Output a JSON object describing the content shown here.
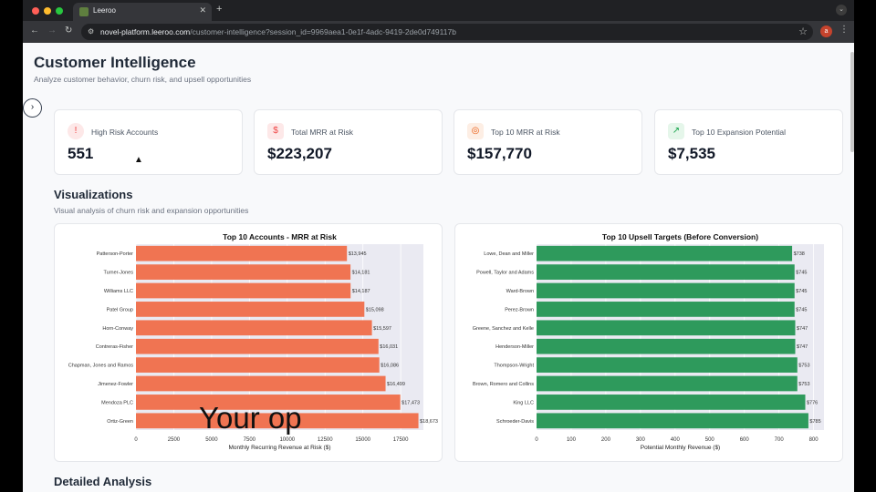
{
  "browser": {
    "tab_title": "Leeroo",
    "url_host": "novel-platform.leeroo.com",
    "url_path": "/customer-intelligence?session_id=9969aea1-0e1f-4adc-9419-2de0d749117b",
    "profile_initial": "a"
  },
  "header": {
    "title": "Customer Intelligence",
    "subtitle": "Analyze customer behavior, churn risk, and upsell opportunities"
  },
  "kpis": [
    {
      "label": "High Risk Accounts",
      "value": "551",
      "icon": "alert-circle-icon",
      "color": "#ef4444",
      "bg": "#fde8e8"
    },
    {
      "label": "Total MRR at Risk",
      "value": "$223,207",
      "icon": "dollar-icon",
      "color": "#ef4444",
      "bg": "#fde8e8"
    },
    {
      "label": "Top 10 MRR at Risk",
      "value": "$157,770",
      "icon": "target-icon",
      "color": "#ea580c",
      "bg": "#fdeee4"
    },
    {
      "label": "Top 10 Expansion Potential",
      "value": "$7,535",
      "icon": "trending-up-icon",
      "color": "#16a34a",
      "bg": "#e5f6ea"
    }
  ],
  "visualizations": {
    "title": "Visualizations",
    "subtitle": "Visual analysis of churn risk and expansion opportunities"
  },
  "detailed": {
    "title": "Detailed Analysis"
  },
  "overlay_caption": "Your op",
  "chart_data": [
    {
      "type": "bar",
      "orientation": "horizontal",
      "title": "Top 10 Accounts - MRR at Risk",
      "xlabel": "Monthly Recurring Revenue at Risk ($)",
      "ylabel": "",
      "xlim": [
        0,
        19000
      ],
      "xticks": [
        0,
        2500,
        5000,
        7500,
        10000,
        12500,
        15000,
        17500
      ],
      "color": "#f07452",
      "grid": true,
      "categories": [
        "Patterson-Porter",
        "Turner-Jones",
        "Williams LLC",
        "Patel Group",
        "Horn-Conway",
        "Contreras-Fisher",
        "Chapman, Jones and Ramos",
        "Jimenez-Fowler",
        "Mendoza PLC",
        "Ortiz-Green"
      ],
      "values": [
        13945,
        14181,
        14187,
        15098,
        15597,
        16031,
        16086,
        16499,
        17473,
        18673
      ],
      "labels": [
        "$13,945",
        "$14,181",
        "$14,187",
        "$15,098",
        "$15,597",
        "$16,031",
        "$16,086",
        "$16,499",
        "$17,473",
        "$18,673"
      ]
    },
    {
      "type": "bar",
      "orientation": "horizontal",
      "title": "Top 10 Upsell Targets (Before Conversion)",
      "xlabel": "Potential Monthly Revenue ($)",
      "ylabel": "",
      "xlim": [
        0,
        830
      ],
      "xticks": [
        0,
        100,
        200,
        300,
        400,
        500,
        600,
        700,
        800
      ],
      "color": "#2e9a5c",
      "grid": true,
      "categories": [
        "Lowe, Dean and Miller",
        "Powell, Taylor and Adams",
        "Ward-Brown",
        "Perez-Brown",
        "Greene, Sanchez and Kelle",
        "Henderson-Miller",
        "Thompson-Wright",
        "Brown, Romero and Collins",
        "King LLC",
        "Schroeder-Davis"
      ],
      "values": [
        738,
        745,
        745,
        745,
        747,
        747,
        753,
        753,
        776,
        785
      ],
      "labels": [
        "$738",
        "$745",
        "$745",
        "$745",
        "$747",
        "$747",
        "$753",
        "$753",
        "$776",
        "$785"
      ]
    }
  ]
}
